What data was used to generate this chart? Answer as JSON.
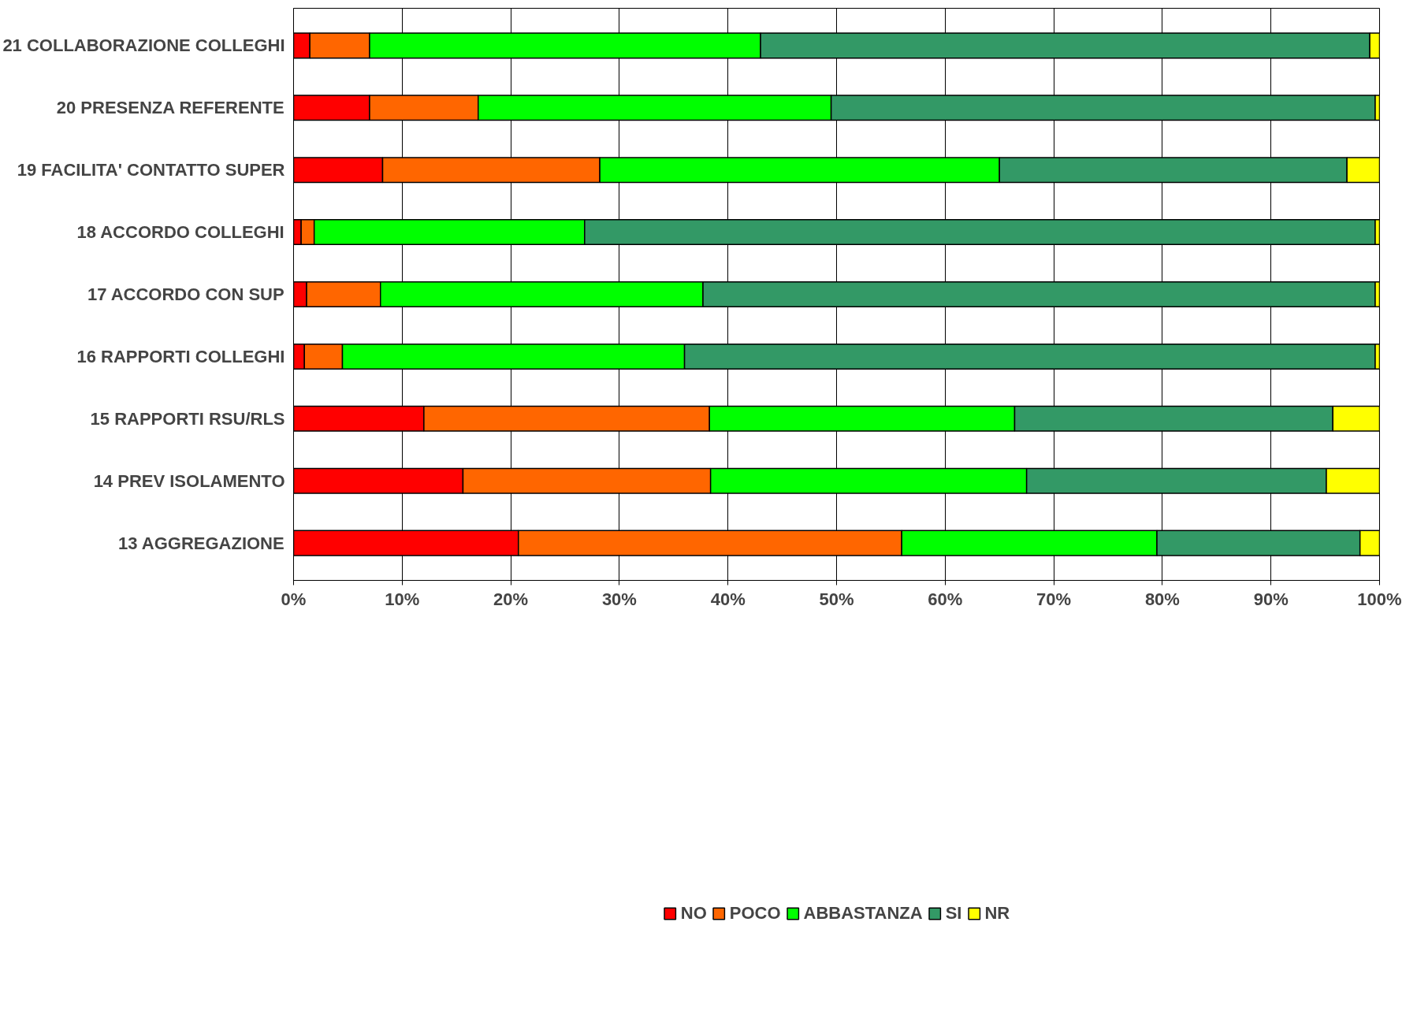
{
  "chart_data": {
    "type": "bar",
    "orientation": "horizontal",
    "stacked": true,
    "categories": [
      "21 COLLABORAZIONE COLLEGHI",
      "20 PRESENZA REFERENTE",
      "19 FACILITA' CONTATTO SUPER",
      "18 ACCORDO COLLEGHI",
      "17 ACCORDO CON SUP",
      "16 RAPPORTI COLLEGHI",
      "15 RAPPORTI RSU/RLS",
      "14 PREV ISOLAMENTO",
      "13 AGGREGAZIONE"
    ],
    "series": [
      {
        "name": "NO",
        "color": "#ff0000",
        "values": [
          1.5,
          7.0,
          8.2,
          0.7,
          1.2,
          1.0,
          12.0,
          15.6,
          20.7
        ]
      },
      {
        "name": "POCO",
        "color": "#ff6600",
        "values": [
          5.5,
          10.0,
          20.0,
          1.2,
          6.8,
          3.5,
          26.3,
          22.8,
          35.3
        ]
      },
      {
        "name": "ABBASTANZA",
        "color": "#00ff00",
        "values": [
          36.0,
          32.5,
          36.8,
          24.9,
          29.7,
          31.5,
          28.1,
          29.1,
          23.5
        ]
      },
      {
        "name": "SI",
        "color": "#339966",
        "values": [
          56.1,
          50.1,
          32.0,
          72.8,
          61.9,
          63.6,
          29.3,
          27.6,
          18.7
        ]
      },
      {
        "name": "NR",
        "color": "#ffff00",
        "values": [
          0.9,
          0.4,
          3.0,
          0.4,
          0.4,
          0.4,
          4.3,
          4.9,
          1.8
        ]
      }
    ],
    "xlim": [
      0,
      100
    ],
    "xticks": [
      {
        "value": 0,
        "label": "0%"
      },
      {
        "value": 10,
        "label": "10%"
      },
      {
        "value": 20,
        "label": "20%"
      },
      {
        "value": 30,
        "label": "30%"
      },
      {
        "value": 40,
        "label": "40%"
      },
      {
        "value": 50,
        "label": "50%"
      },
      {
        "value": 60,
        "label": "60%"
      },
      {
        "value": 70,
        "label": "70%"
      },
      {
        "value": 80,
        "label": "80%"
      },
      {
        "value": 90,
        "label": "90%"
      },
      {
        "value": 100,
        "label": "100%"
      }
    ],
    "grid": "x",
    "legend": "bottom"
  }
}
